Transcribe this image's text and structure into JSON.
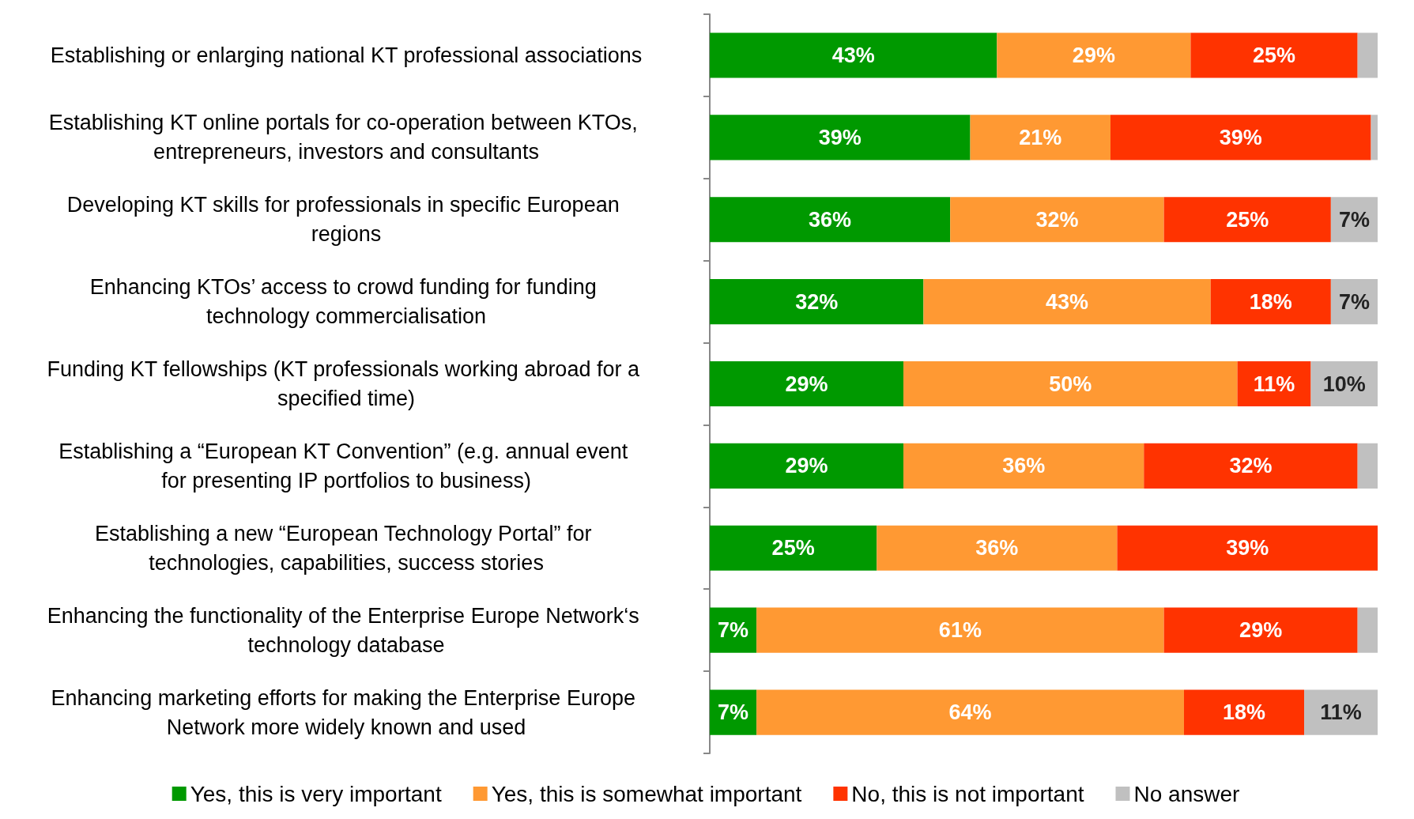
{
  "chart_data": {
    "type": "bar",
    "orientation": "horizontal",
    "stacked": true,
    "legend": "bottom",
    "categories": [
      "Establishing or enlarging national KT professional associations",
      "Establishing KT online portals for co-operation between KTOs, entrepreneurs, investors and consultants",
      "Developing KT skills for professionals in specific European regions",
      "Enhancing KTOs’ access to crowd funding for funding technology commercialisation",
      "Funding KT fellowships (KT professionals working abroad for a specified time)",
      "Establishing a “European KT Convention” (e.g. annual event for presenting IP portfolios to business)",
      "Establishing a new “European Technology Portal” for technologies, capabilities, success stories",
      "Enhancing the functionality of the Enterprise Europe Network‘s technology database",
      "Enhancing marketing efforts for making the Enterprise Europe Network more widely known and used"
    ],
    "series": [
      {
        "name": "Yes, this is very important",
        "color": "#009900",
        "values": [
          43,
          39,
          36,
          32,
          29,
          29,
          25,
          7,
          7
        ],
        "value_labels": [
          "43%",
          "39%",
          "36%",
          "32%",
          "29%",
          "29%",
          "25%",
          "7%",
          "7%"
        ]
      },
      {
        "name": "Yes, this is somewhat important",
        "color": "#ff9933",
        "values": [
          29,
          21,
          32,
          43,
          50,
          36,
          36,
          61,
          64
        ],
        "value_labels": [
          "29%",
          "21%",
          "32%",
          "43%",
          "50%",
          "36%",
          "36%",
          "61%",
          "64%"
        ]
      },
      {
        "name": "No, this is not important",
        "color": "#ff3300",
        "values": [
          25,
          39,
          25,
          18,
          11,
          32,
          39,
          29,
          18
        ],
        "value_labels": [
          "25%",
          "39%",
          "25%",
          "18%",
          "11%",
          "32%",
          "39%",
          "29%",
          "18%"
        ]
      },
      {
        "name": "No answer",
        "color": "#c0c0c0",
        "values": [
          3,
          1,
          7,
          7,
          10,
          3,
          0,
          3,
          11
        ],
        "value_labels": [
          null,
          null,
          "7%",
          "7%",
          "10%",
          null,
          null,
          null,
          "11%"
        ]
      }
    ]
  }
}
